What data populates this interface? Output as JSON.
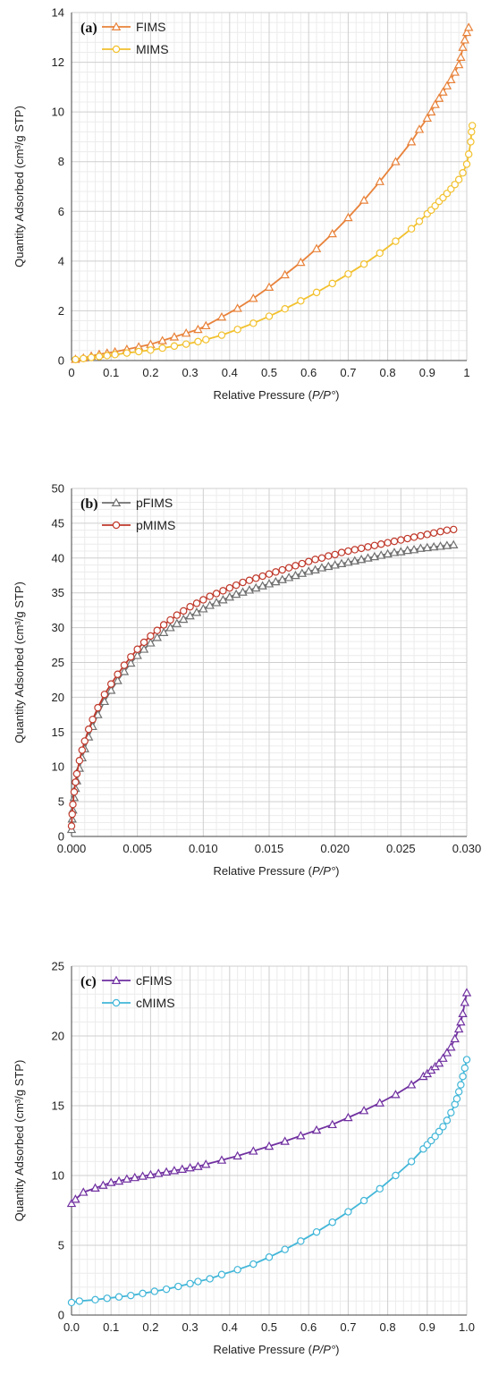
{
  "chart_data": [
    {
      "type": "line",
      "panel_label": "(a)",
      "xlabel_prefix": "Relative Pressure (",
      "xlabel_italic": "P/P°",
      "xlabel_suffix": ")",
      "ylabel": "Quantity Adsorbed (cm³/g STP)",
      "xlim": [
        0,
        1
      ],
      "ylim": [
        0,
        14
      ],
      "xticks": [
        0,
        0.1,
        0.2,
        0.3,
        0.4,
        0.5,
        0.6,
        0.7,
        0.8,
        0.9,
        1
      ],
      "xtick_labels": [
        "0",
        "0.1",
        "0.2",
        "0.3",
        "0.4",
        "0.5",
        "0.6",
        "0.7",
        "0.8",
        "0.9",
        "1"
      ],
      "yticks": [
        0,
        2,
        4,
        6,
        8,
        10,
        12,
        14
      ],
      "ytick_labels": [
        "0",
        "2",
        "4",
        "6",
        "8",
        "10",
        "12",
        "14"
      ],
      "grid": true,
      "legend_position": "top-left",
      "series": [
        {
          "name": "FIMS",
          "color": "#e8823a",
          "marker": "triangle",
          "x": [
            0.01,
            0.03,
            0.05,
            0.07,
            0.09,
            0.11,
            0.14,
            0.17,
            0.2,
            0.23,
            0.26,
            0.29,
            0.32,
            0.34,
            0.38,
            0.42,
            0.46,
            0.5,
            0.54,
            0.58,
            0.62,
            0.66,
            0.7,
            0.74,
            0.78,
            0.82,
            0.86,
            0.88,
            0.9,
            0.91,
            0.92,
            0.93,
            0.94,
            0.95,
            0.96,
            0.97,
            0.98,
            0.985,
            0.99,
            0.995,
            1.0,
            1.005
          ],
          "y": [
            0.05,
            0.1,
            0.18,
            0.25,
            0.3,
            0.35,
            0.45,
            0.55,
            0.65,
            0.8,
            0.95,
            1.1,
            1.25,
            1.4,
            1.75,
            2.1,
            2.5,
            2.95,
            3.45,
            3.95,
            4.5,
            5.1,
            5.75,
            6.45,
            7.2,
            8.0,
            8.8,
            9.3,
            9.75,
            10.0,
            10.3,
            10.55,
            10.8,
            11.05,
            11.3,
            11.6,
            11.9,
            12.2,
            12.6,
            12.9,
            13.2,
            13.4
          ]
        },
        {
          "name": "MIMS",
          "color": "#f2c12e",
          "marker": "circle",
          "x": [
            0.01,
            0.03,
            0.05,
            0.07,
            0.09,
            0.11,
            0.14,
            0.17,
            0.2,
            0.23,
            0.26,
            0.29,
            0.32,
            0.34,
            0.38,
            0.42,
            0.46,
            0.5,
            0.54,
            0.58,
            0.62,
            0.66,
            0.7,
            0.74,
            0.78,
            0.82,
            0.86,
            0.88,
            0.9,
            0.91,
            0.92,
            0.93,
            0.94,
            0.95,
            0.96,
            0.97,
            0.98,
            0.99,
            1.0,
            1.005,
            1.01,
            1.012,
            1.014
          ],
          "y": [
            0.04,
            0.08,
            0.12,
            0.16,
            0.2,
            0.24,
            0.3,
            0.36,
            0.42,
            0.5,
            0.58,
            0.66,
            0.76,
            0.84,
            1.02,
            1.25,
            1.5,
            1.78,
            2.08,
            2.4,
            2.74,
            3.1,
            3.48,
            3.88,
            4.32,
            4.8,
            5.3,
            5.6,
            5.9,
            6.05,
            6.22,
            6.4,
            6.55,
            6.72,
            6.9,
            7.08,
            7.28,
            7.55,
            7.9,
            8.3,
            8.8,
            9.2,
            9.45
          ]
        }
      ]
    },
    {
      "type": "line",
      "panel_label": "(b)",
      "xlabel_prefix": "Relative Pressure (",
      "xlabel_italic": "P/P°",
      "xlabel_suffix": ")",
      "ylabel": "Quantity Adsorbed (cm³/g STP)",
      "xlim": [
        0,
        0.03
      ],
      "ylim": [
        0,
        50
      ],
      "xticks": [
        0,
        0.005,
        0.01,
        0.015,
        0.02,
        0.025,
        0.03
      ],
      "xtick_labels": [
        "0.000",
        "0.005",
        "0.010",
        "0.015",
        "0.020",
        "0.025",
        "0.030"
      ],
      "yticks": [
        0,
        5,
        10,
        15,
        20,
        25,
        30,
        35,
        40,
        45,
        50
      ],
      "ytick_labels": [
        "0",
        "5",
        "10",
        "15",
        "20",
        "25",
        "30",
        "35",
        "40",
        "45",
        "50"
      ],
      "grid": true,
      "legend_position": "top-left",
      "series": [
        {
          "name": "pFIMS",
          "color": "#707070",
          "marker": "triangle",
          "x": [
            0.0,
            5e-05,
            0.0001,
            0.0002,
            0.0003,
            0.0004,
            0.0006,
            0.0008,
            0.001,
            0.0013,
            0.0016,
            0.002,
            0.0025,
            0.003,
            0.0035,
            0.004,
            0.0045,
            0.005,
            0.0055,
            0.006,
            0.0065,
            0.007,
            0.0075,
            0.008,
            0.0085,
            0.009,
            0.0095,
            0.01,
            0.0105,
            0.011,
            0.0115,
            0.012,
            0.0125,
            0.013,
            0.0135,
            0.014,
            0.0145,
            0.015,
            0.0155,
            0.016,
            0.0165,
            0.017,
            0.0175,
            0.018,
            0.0185,
            0.019,
            0.0195,
            0.02,
            0.0205,
            0.021,
            0.0215,
            0.022,
            0.0225,
            0.023,
            0.0235,
            0.024,
            0.0245,
            0.025,
            0.0255,
            0.026,
            0.0265,
            0.027,
            0.0275,
            0.028,
            0.0285,
            0.029
          ],
          "y": [
            1.0,
            2.5,
            3.8,
            5.6,
            6.9,
            8.0,
            9.8,
            11.3,
            12.6,
            14.3,
            15.8,
            17.5,
            19.4,
            21.0,
            22.4,
            23.7,
            24.9,
            26.0,
            26.9,
            27.8,
            28.6,
            29.3,
            30.0,
            30.6,
            31.2,
            31.7,
            32.2,
            32.7,
            33.2,
            33.6,
            34.0,
            34.4,
            34.8,
            35.1,
            35.4,
            35.7,
            36.0,
            36.3,
            36.6,
            36.9,
            37.2,
            37.5,
            37.8,
            38.1,
            38.3,
            38.6,
            38.8,
            39.0,
            39.2,
            39.4,
            39.6,
            39.8,
            40.0,
            40.2,
            40.4,
            40.6,
            40.8,
            40.9,
            41.1,
            41.2,
            41.4,
            41.5,
            41.6,
            41.7,
            41.8,
            41.9
          ]
        },
        {
          "name": "pMIMS",
          "color": "#c0392b",
          "marker": "circle",
          "x": [
            0.0,
            5e-05,
            0.0001,
            0.0002,
            0.0003,
            0.0004,
            0.0006,
            0.0008,
            0.001,
            0.0013,
            0.0016,
            0.002,
            0.0025,
            0.003,
            0.0035,
            0.004,
            0.0045,
            0.005,
            0.0055,
            0.006,
            0.0065,
            0.007,
            0.0075,
            0.008,
            0.0085,
            0.009,
            0.0095,
            0.01,
            0.0105,
            0.011,
            0.0115,
            0.012,
            0.0125,
            0.013,
            0.0135,
            0.014,
            0.0145,
            0.015,
            0.0155,
            0.016,
            0.0165,
            0.017,
            0.0175,
            0.018,
            0.0185,
            0.019,
            0.0195,
            0.02,
            0.0205,
            0.021,
            0.0215,
            0.022,
            0.0225,
            0.023,
            0.0235,
            0.024,
            0.0245,
            0.025,
            0.0255,
            0.026,
            0.0265,
            0.027,
            0.0275,
            0.028,
            0.0285,
            0.029
          ],
          "y": [
            1.5,
            3.2,
            4.6,
            6.4,
            7.8,
            9.0,
            10.9,
            12.4,
            13.7,
            15.4,
            16.8,
            18.5,
            20.4,
            21.9,
            23.3,
            24.6,
            25.8,
            26.9,
            27.9,
            28.8,
            29.6,
            30.4,
            31.1,
            31.8,
            32.4,
            33.0,
            33.5,
            34.0,
            34.5,
            34.9,
            35.3,
            35.7,
            36.1,
            36.5,
            36.8,
            37.1,
            37.4,
            37.7,
            38.0,
            38.3,
            38.6,
            38.9,
            39.2,
            39.5,
            39.8,
            40.0,
            40.3,
            40.5,
            40.8,
            41.0,
            41.2,
            41.4,
            41.6,
            41.8,
            42.0,
            42.2,
            42.4,
            42.6,
            42.8,
            43.0,
            43.2,
            43.4,
            43.6,
            43.8,
            44.0,
            44.1
          ]
        }
      ]
    },
    {
      "type": "line",
      "panel_label": "(c)",
      "xlabel_prefix": "Relative Pressure (",
      "xlabel_italic": "P/P°",
      "xlabel_suffix": ")",
      "ylabel": "Quantity Adsorbed (cm³/g STP)",
      "xlim": [
        0,
        1
      ],
      "ylim": [
        0,
        25
      ],
      "xticks": [
        0,
        0.1,
        0.2,
        0.3,
        0.4,
        0.5,
        0.6,
        0.7,
        0.8,
        0.9,
        1
      ],
      "xtick_labels": [
        "0.0",
        "0.1",
        "0.2",
        "0.3",
        "0.4",
        "0.5",
        "0.6",
        "0.7",
        "0.8",
        "0.9",
        "1.0"
      ],
      "yticks": [
        0,
        5,
        10,
        15,
        20,
        25
      ],
      "ytick_labels": [
        "0",
        "5",
        "10",
        "15",
        "20",
        "25"
      ],
      "grid": true,
      "legend_position": "top-left",
      "series": [
        {
          "name": "cFIMS",
          "color": "#7030a0",
          "marker": "triangle",
          "x": [
            0.0,
            0.01,
            0.03,
            0.06,
            0.08,
            0.1,
            0.12,
            0.14,
            0.16,
            0.18,
            0.2,
            0.22,
            0.24,
            0.26,
            0.28,
            0.3,
            0.32,
            0.34,
            0.38,
            0.42,
            0.46,
            0.5,
            0.54,
            0.58,
            0.62,
            0.66,
            0.7,
            0.74,
            0.78,
            0.82,
            0.86,
            0.89,
            0.9,
            0.91,
            0.92,
            0.93,
            0.94,
            0.95,
            0.96,
            0.97,
            0.98,
            0.985,
            0.99,
            0.995,
            1.0
          ],
          "y": [
            8.0,
            8.3,
            8.8,
            9.1,
            9.3,
            9.5,
            9.6,
            9.75,
            9.85,
            9.95,
            10.05,
            10.15,
            10.25,
            10.35,
            10.45,
            10.55,
            10.65,
            10.8,
            11.1,
            11.4,
            11.75,
            12.1,
            12.45,
            12.85,
            13.25,
            13.65,
            14.15,
            14.65,
            15.2,
            15.8,
            16.5,
            17.1,
            17.3,
            17.55,
            17.8,
            18.05,
            18.4,
            18.8,
            19.2,
            19.8,
            20.5,
            21.0,
            21.6,
            22.4,
            23.1
          ]
        },
        {
          "name": "cMIMS",
          "color": "#41b6d8",
          "marker": "circle",
          "x": [
            0.0,
            0.02,
            0.06,
            0.09,
            0.12,
            0.15,
            0.18,
            0.21,
            0.24,
            0.27,
            0.3,
            0.32,
            0.35,
            0.38,
            0.42,
            0.46,
            0.5,
            0.54,
            0.58,
            0.62,
            0.66,
            0.7,
            0.74,
            0.78,
            0.82,
            0.86,
            0.89,
            0.9,
            0.91,
            0.92,
            0.93,
            0.94,
            0.95,
            0.96,
            0.97,
            0.975,
            0.98,
            0.985,
            0.99,
            0.995,
            1.0
          ],
          "y": [
            0.9,
            1.0,
            1.1,
            1.2,
            1.3,
            1.4,
            1.55,
            1.7,
            1.85,
            2.05,
            2.25,
            2.4,
            2.6,
            2.9,
            3.25,
            3.65,
            4.15,
            4.7,
            5.3,
            5.95,
            6.65,
            7.4,
            8.2,
            9.05,
            10.0,
            11.0,
            11.9,
            12.2,
            12.5,
            12.8,
            13.15,
            13.5,
            13.95,
            14.5,
            15.1,
            15.5,
            16.0,
            16.5,
            17.1,
            17.7,
            18.3
          ]
        }
      ]
    }
  ]
}
